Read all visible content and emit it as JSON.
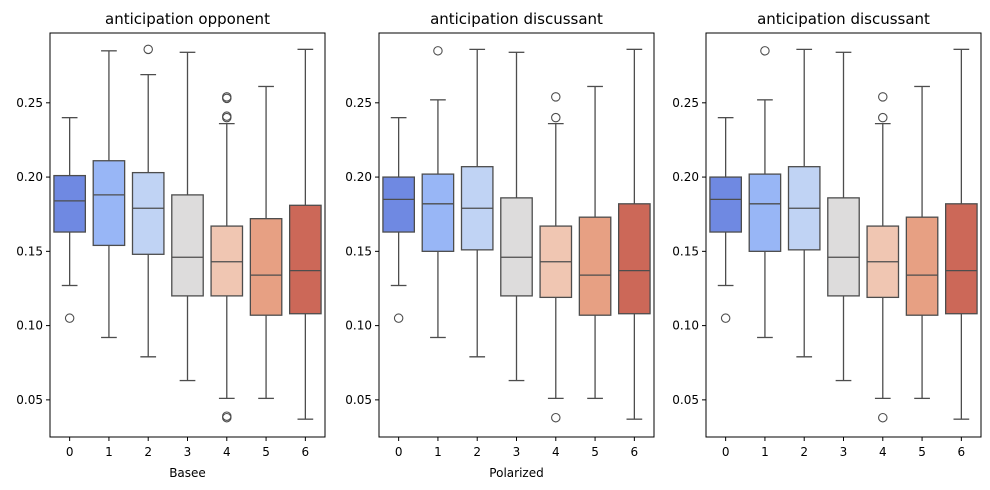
{
  "chart_data": [
    {
      "type": "box",
      "title": "anticipation opponent",
      "xlabel": "Basee",
      "ylabel": "",
      "ylim": [
        0.025,
        0.297
      ],
      "yticks": [
        0.05,
        0.1,
        0.15,
        0.2,
        0.25
      ],
      "ytick_labels": [
        "0.05",
        "0.10",
        "0.15",
        "0.20",
        "0.25"
      ],
      "categories": [
        "0",
        "1",
        "2",
        "3",
        "4",
        "5",
        "6"
      ],
      "boxes": [
        {
          "category": "0",
          "q1": 0.163,
          "median": 0.184,
          "q3": 0.201,
          "whisker_low": 0.127,
          "whisker_high": 0.24,
          "outliers": [
            0.105
          ],
          "color": "#6f89e2"
        },
        {
          "category": "1",
          "q1": 0.154,
          "median": 0.188,
          "q3": 0.211,
          "whisker_low": 0.092,
          "whisker_high": 0.285,
          "outliers": [],
          "color": "#98b6f6"
        },
        {
          "category": "2",
          "q1": 0.148,
          "median": 0.179,
          "q3": 0.203,
          "whisker_low": 0.079,
          "whisker_high": 0.269,
          "outliers": [
            0.286
          ],
          "color": "#c0d3f4"
        },
        {
          "category": "3",
          "q1": 0.12,
          "median": 0.146,
          "q3": 0.188,
          "whisker_low": 0.063,
          "whisker_high": 0.284,
          "outliers": [],
          "color": "#dddcdc"
        },
        {
          "category": "4",
          "q1": 0.12,
          "median": 0.143,
          "q3": 0.167,
          "whisker_low": 0.051,
          "whisker_high": 0.236,
          "outliers": [
            0.038,
            0.039,
            0.24,
            0.241,
            0.253,
            0.254
          ],
          "color": "#f0c6b2"
        },
        {
          "category": "5",
          "q1": 0.107,
          "median": 0.134,
          "q3": 0.172,
          "whisker_low": 0.051,
          "whisker_high": 0.261,
          "outliers": [],
          "color": "#e7a083"
        },
        {
          "category": "6",
          "q1": 0.108,
          "median": 0.137,
          "q3": 0.181,
          "whisker_low": 0.037,
          "whisker_high": 0.286,
          "outliers": [],
          "color": "#cc6858"
        }
      ]
    },
    {
      "type": "box",
      "title": "anticipation discussant",
      "xlabel": "Polarized",
      "ylabel": "",
      "ylim": [
        0.025,
        0.297
      ],
      "yticks": [
        0.05,
        0.1,
        0.15,
        0.2,
        0.25
      ],
      "ytick_labels": [
        "0.05",
        "0.10",
        "0.15",
        "0.20",
        "0.25"
      ],
      "categories": [
        "0",
        "1",
        "2",
        "3",
        "4",
        "5",
        "6"
      ],
      "boxes": [
        {
          "category": "0",
          "q1": 0.163,
          "median": 0.185,
          "q3": 0.2,
          "whisker_low": 0.127,
          "whisker_high": 0.24,
          "outliers": [
            0.105
          ],
          "color": "#6f89e2"
        },
        {
          "category": "1",
          "q1": 0.15,
          "median": 0.182,
          "q3": 0.202,
          "whisker_low": 0.092,
          "whisker_high": 0.252,
          "outliers": [
            0.285
          ],
          "color": "#98b6f6"
        },
        {
          "category": "2",
          "q1": 0.151,
          "median": 0.179,
          "q3": 0.207,
          "whisker_low": 0.079,
          "whisker_high": 0.286,
          "outliers": [],
          "color": "#c0d3f4"
        },
        {
          "category": "3",
          "q1": 0.12,
          "median": 0.146,
          "q3": 0.186,
          "whisker_low": 0.063,
          "whisker_high": 0.284,
          "outliers": [],
          "color": "#dddcdc"
        },
        {
          "category": "4",
          "q1": 0.119,
          "median": 0.143,
          "q3": 0.167,
          "whisker_low": 0.051,
          "whisker_high": 0.236,
          "outliers": [
            0.038,
            0.24,
            0.254
          ],
          "color": "#f0c6b2"
        },
        {
          "category": "5",
          "q1": 0.107,
          "median": 0.134,
          "q3": 0.173,
          "whisker_low": 0.051,
          "whisker_high": 0.261,
          "outliers": [],
          "color": "#e7a083"
        },
        {
          "category": "6",
          "q1": 0.108,
          "median": 0.137,
          "q3": 0.182,
          "whisker_low": 0.037,
          "whisker_high": 0.286,
          "outliers": [],
          "color": "#cc6858"
        }
      ]
    },
    {
      "type": "box",
      "title": "anticipation discussant",
      "xlabel": "",
      "ylabel": "",
      "ylim": [
        0.025,
        0.297
      ],
      "yticks": [
        0.05,
        0.1,
        0.15,
        0.2,
        0.25
      ],
      "ytick_labels": [
        "0.05",
        "0.10",
        "0.15",
        "0.20",
        "0.25"
      ],
      "categories": [
        "0",
        "1",
        "2",
        "3",
        "4",
        "5",
        "6"
      ],
      "boxes": [
        {
          "category": "0",
          "q1": 0.163,
          "median": 0.185,
          "q3": 0.2,
          "whisker_low": 0.127,
          "whisker_high": 0.24,
          "outliers": [
            0.105
          ],
          "color": "#6f89e2"
        },
        {
          "category": "1",
          "q1": 0.15,
          "median": 0.182,
          "q3": 0.202,
          "whisker_low": 0.092,
          "whisker_high": 0.252,
          "outliers": [
            0.285
          ],
          "color": "#98b6f6"
        },
        {
          "category": "2",
          "q1": 0.151,
          "median": 0.179,
          "q3": 0.207,
          "whisker_low": 0.079,
          "whisker_high": 0.286,
          "outliers": [],
          "color": "#c0d3f4"
        },
        {
          "category": "3",
          "q1": 0.12,
          "median": 0.146,
          "q3": 0.186,
          "whisker_low": 0.063,
          "whisker_high": 0.284,
          "outliers": [],
          "color": "#dddcdc"
        },
        {
          "category": "4",
          "q1": 0.119,
          "median": 0.143,
          "q3": 0.167,
          "whisker_low": 0.051,
          "whisker_high": 0.236,
          "outliers": [
            0.038,
            0.24,
            0.254
          ],
          "color": "#f0c6b2"
        },
        {
          "category": "5",
          "q1": 0.107,
          "median": 0.134,
          "q3": 0.173,
          "whisker_low": 0.051,
          "whisker_high": 0.261,
          "outliers": [],
          "color": "#e7a083"
        },
        {
          "category": "6",
          "q1": 0.108,
          "median": 0.137,
          "q3": 0.182,
          "whisker_low": 0.037,
          "whisker_high": 0.286,
          "outliers": [],
          "color": "#cc6858"
        }
      ]
    }
  ]
}
